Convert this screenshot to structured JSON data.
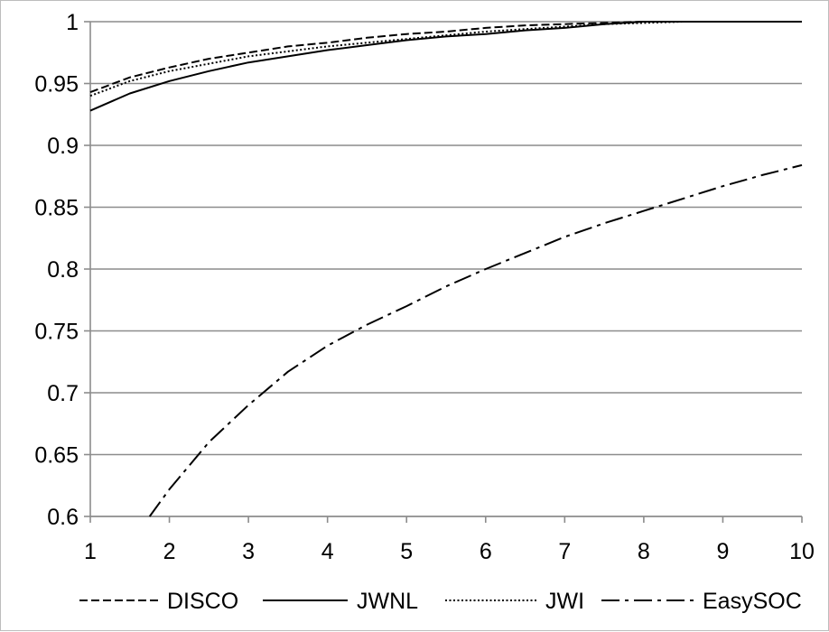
{
  "chart_data": {
    "type": "line",
    "title": "",
    "xlabel": "",
    "ylabel": "",
    "xlim": [
      1,
      10
    ],
    "ylim": [
      0.6,
      1
    ],
    "x_ticks": [
      "1",
      "2",
      "3",
      "4",
      "5",
      "6",
      "7",
      "8",
      "9",
      "10"
    ],
    "y_ticks": [
      "0.6",
      "0.65",
      "0.7",
      "0.75",
      "0.8",
      "0.85",
      "0.9",
      "0.95",
      "1"
    ],
    "grid": "horizontal",
    "legend_position": "bottom",
    "series": [
      {
        "name": "DISCO",
        "style": "dashed",
        "color": "#000000",
        "x": [
          1,
          1.5,
          2,
          2.5,
          3,
          3.5,
          4,
          4.5,
          5,
          5.5,
          6,
          6.5,
          7,
          7.5,
          8,
          8.5,
          9,
          9.5,
          10
        ],
        "y": [
          0.943,
          0.955,
          0.963,
          0.97,
          0.975,
          0.98,
          0.983,
          0.987,
          0.99,
          0.992,
          0.995,
          0.997,
          0.998,
          0.999,
          1.0,
          1.0,
          1.0,
          1.0,
          1.0
        ]
      },
      {
        "name": "JWNL",
        "style": "solid",
        "color": "#000000",
        "x": [
          1,
          1.5,
          2,
          2.5,
          3,
          3.5,
          4,
          4.5,
          5,
          5.5,
          6,
          6.5,
          7,
          7.5,
          8,
          8.5,
          9,
          9.5,
          10
        ],
        "y": [
          0.928,
          0.942,
          0.952,
          0.96,
          0.967,
          0.972,
          0.977,
          0.981,
          0.985,
          0.988,
          0.99,
          0.993,
          0.995,
          0.998,
          1.0,
          1.0,
          1.0,
          1.0,
          1.0
        ]
      },
      {
        "name": "JWI",
        "style": "dotted",
        "color": "#000000",
        "x": [
          1,
          1.5,
          2,
          2.5,
          3,
          3.5,
          4,
          4.5,
          5,
          5.5,
          6,
          6.5,
          7,
          7.5,
          8,
          8.5,
          9,
          9.5,
          10
        ],
        "y": [
          0.94,
          0.952,
          0.96,
          0.966,
          0.972,
          0.976,
          0.98,
          0.983,
          0.986,
          0.989,
          0.992,
          0.994,
          0.996,
          0.998,
          0.999,
          1.0,
          1.0,
          1.0,
          1.0
        ]
      },
      {
        "name": "EasySOC",
        "style": "dash-dot",
        "color": "#000000",
        "x": [
          1.75,
          2,
          2.5,
          3,
          3.5,
          4,
          4.5,
          5,
          5.5,
          6,
          6.5,
          7,
          7.5,
          8,
          8.5,
          9,
          9.5,
          10
        ],
        "y": [
          0.6,
          0.622,
          0.66,
          0.69,
          0.717,
          0.738,
          0.755,
          0.77,
          0.786,
          0.8,
          0.813,
          0.826,
          0.837,
          0.847,
          0.857,
          0.867,
          0.876,
          0.884
        ]
      }
    ]
  }
}
